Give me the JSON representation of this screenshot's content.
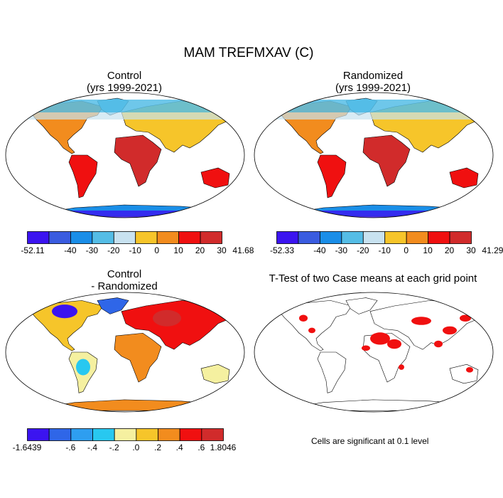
{
  "title": "MAM TREFMXAV (C)",
  "panels": [
    {
      "id": "control",
      "title_line1": "Control",
      "title_line2": "(yrs 1999-2021)"
    },
    {
      "id": "randomized",
      "title_line1": "Randomized",
      "title_line2": "(yrs 1999-2021)"
    },
    {
      "id": "difference",
      "title_line1": "Control",
      "title_line2": "- Randomized"
    },
    {
      "id": "ttest",
      "title_line1": "T-Test of two Case means at each grid point"
    }
  ],
  "colorbars": {
    "temperature_colors": [
      "#3b14f0",
      "#3a5ce0",
      "#1a8ee8",
      "#55bde6",
      "#c8e2f0",
      "#f6c52a",
      "#f28c1e",
      "#f01010",
      "#d12b2b"
    ],
    "control_ticks": [
      "-52.11",
      "-40",
      "-30",
      "-20",
      "-10",
      "0",
      "10",
      "20",
      "30",
      "41.68"
    ],
    "randomized_ticks": [
      "-52.33",
      "-40",
      "-30",
      "-20",
      "-10",
      "0",
      "10",
      "20",
      "30",
      "41.29"
    ],
    "difference_colors": [
      "#3b14f0",
      "#2f66e8",
      "#2e9ef0",
      "#28c8f0",
      "#f5f0a0",
      "#f6c52a",
      "#f28c1e",
      "#f01010",
      "#d12b2b"
    ],
    "difference_ticks": [
      "-1.6439",
      "-.6",
      "-.4",
      "-.2",
      ".0",
      ".2",
      ".4",
      ".6",
      "1.8046"
    ]
  },
  "note": "Cells are significant at 0.1 level"
}
